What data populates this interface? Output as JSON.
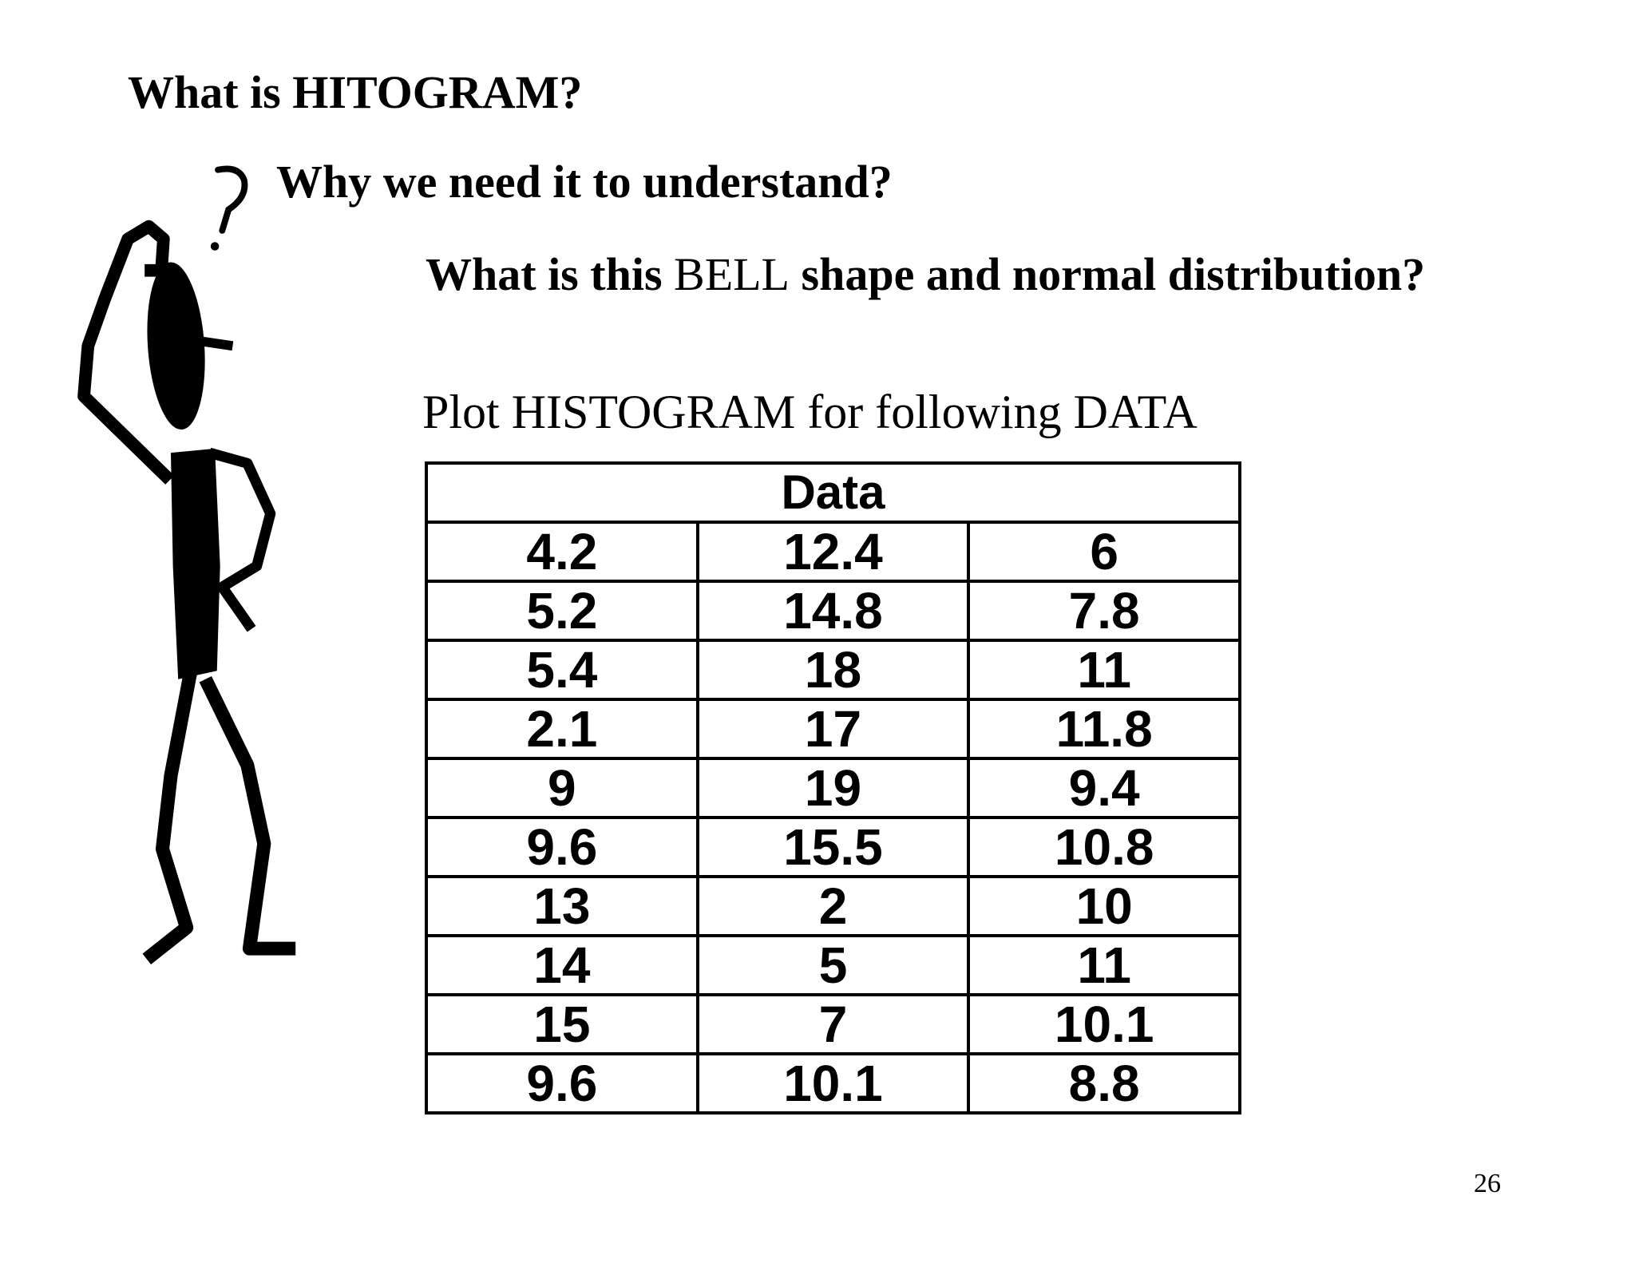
{
  "heading": "What is HITOGRAM?",
  "question_1": "Why we need it to understand?",
  "question_2": {
    "part_1": "What is this ",
    "part_2": "BELL",
    "part_3": " shape and normal distribution?"
  },
  "instruction": "Plot HISTOGRAM for following DATA",
  "table": {
    "header": "Data",
    "rows": [
      [
        "4.2",
        "12.4",
        "6"
      ],
      [
        "5.2",
        "14.8",
        "7.8"
      ],
      [
        "5.4",
        "18",
        "11"
      ],
      [
        "2.1",
        "17",
        "11.8"
      ],
      [
        "9",
        "19",
        "9.4"
      ],
      [
        "9.6",
        "15.5",
        "10.8"
      ],
      [
        "13",
        "2",
        "10"
      ],
      [
        "14",
        "5",
        "11"
      ],
      [
        "15",
        "7",
        "10.1"
      ],
      [
        "9.6",
        "10.1",
        "8.8"
      ]
    ]
  },
  "page_number": "26",
  "illustration": "thinking-stick-figure-with-question-mark"
}
